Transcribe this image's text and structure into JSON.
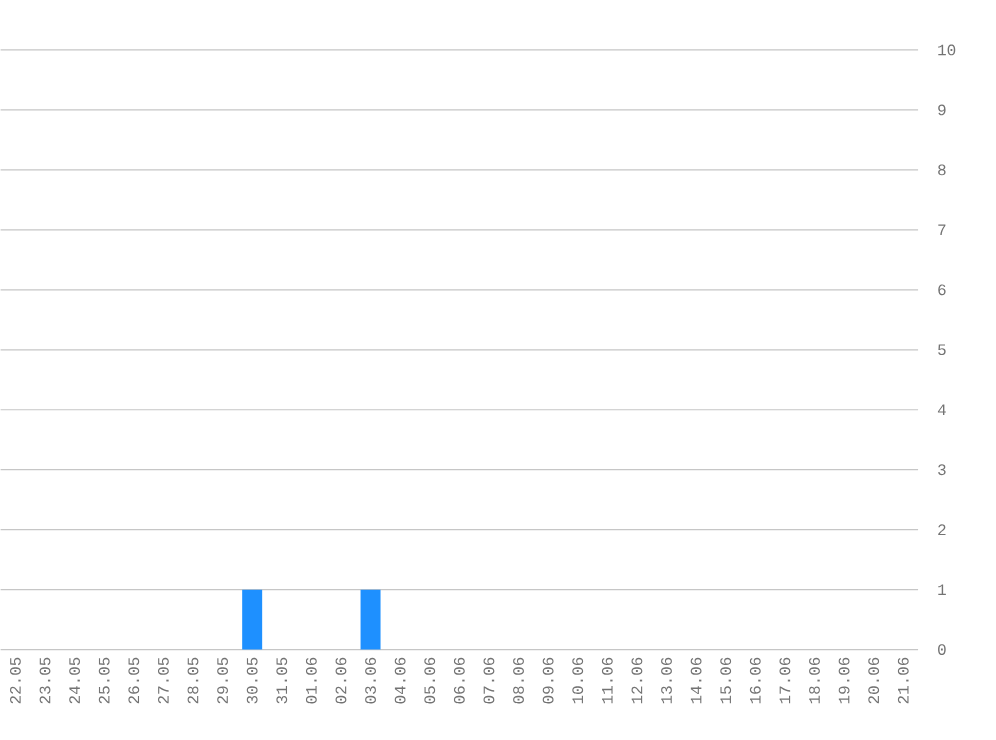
{
  "chart_data": {
    "type": "bar",
    "categories": [
      "22.05",
      "23.05",
      "24.05",
      "25.05",
      "26.05",
      "27.05",
      "28.05",
      "29.05",
      "30.05",
      "31.05",
      "01.06",
      "02.06",
      "03.06",
      "04.06",
      "05.06",
      "06.06",
      "07.06",
      "08.06",
      "09.06",
      "10.06",
      "11.06",
      "12.06",
      "13.06",
      "14.06",
      "15.06",
      "16.06",
      "17.06",
      "18.06",
      "19.06",
      "20.06",
      "21.06"
    ],
    "values": [
      0,
      0,
      0,
      0,
      0,
      0,
      0,
      0,
      1,
      0,
      0,
      0,
      1,
      0,
      0,
      0,
      0,
      0,
      0,
      0,
      0,
      0,
      0,
      0,
      0,
      0,
      0,
      0,
      0,
      0,
      0
    ],
    "color": "#1e90ff",
    "ylim": [
      0,
      10
    ],
    "yticks": [
      0,
      1,
      2,
      3,
      4,
      5,
      6,
      7,
      8,
      9,
      10
    ],
    "grid": "y"
  }
}
